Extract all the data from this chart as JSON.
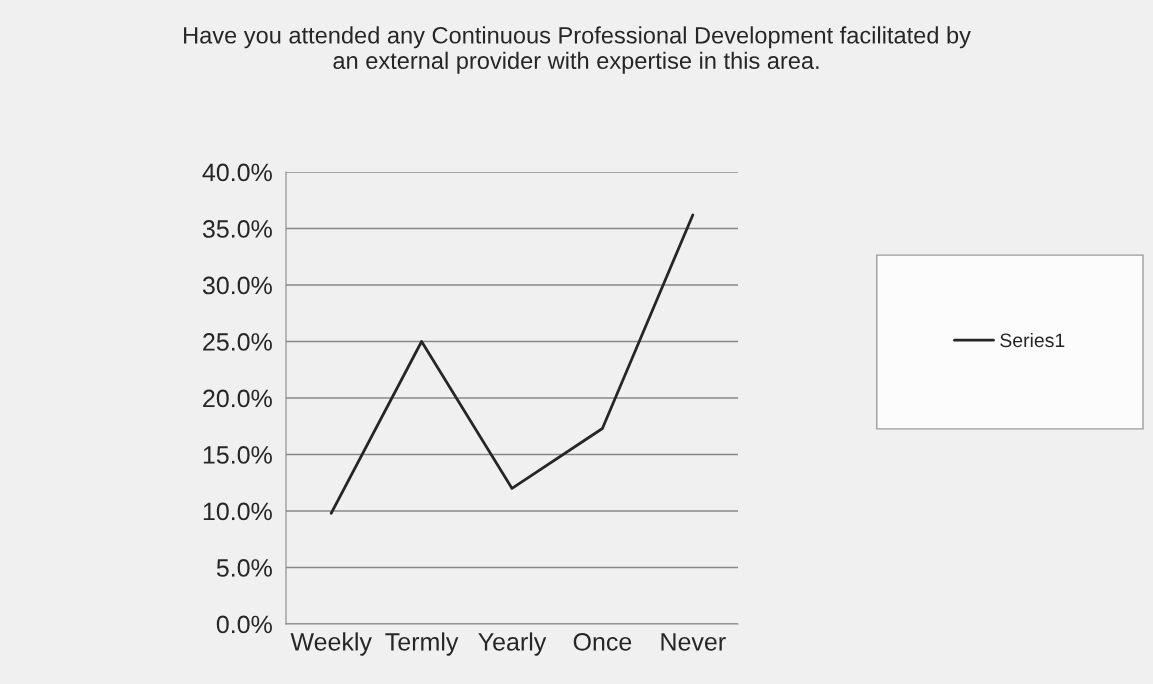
{
  "chart_data": {
    "type": "line",
    "title": "Have you attended any Continuous Professional Development facilitated by\nan external provider with expertise in this area.",
    "categories": [
      "Weekly",
      "Termly",
      "Yearly",
      "Once",
      "Never"
    ],
    "series": [
      {
        "name": "Series1",
        "color": "#262626",
        "values": [
          9.8,
          25.0,
          12.0,
          17.3,
          36.2
        ]
      }
    ],
    "ylim": [
      0,
      40
    ],
    "yticks": [
      {
        "value": 0,
        "label": "0.0%"
      },
      {
        "value": 5,
        "label": "5.0%"
      },
      {
        "value": 10,
        "label": "10.0%"
      },
      {
        "value": 15,
        "label": "15.0%"
      },
      {
        "value": 20,
        "label": "20.0%"
      },
      {
        "value": 25,
        "label": "25.0%"
      },
      {
        "value": 30,
        "label": "30.0%"
      },
      {
        "value": 35,
        "label": "35.0%"
      },
      {
        "value": 40,
        "label": "40.0%"
      }
    ],
    "grid": "y",
    "legend": "right",
    "marker": "none",
    "line_style": "solid"
  }
}
